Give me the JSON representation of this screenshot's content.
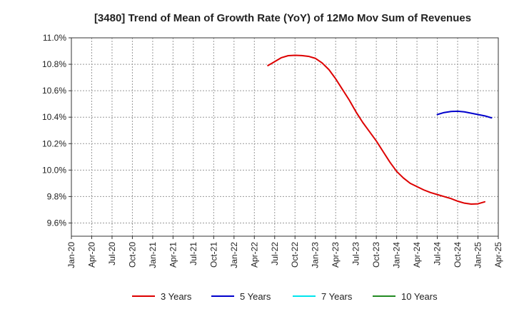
{
  "chart_data": {
    "type": "line",
    "title": "[3480]  Trend of Mean of Growth Rate (YoY) of 12Mo Mov Sum of Revenues",
    "xlabel": "",
    "ylabel": "",
    "y_ticks": [
      9.6,
      9.8,
      10.0,
      10.2,
      10.4,
      10.6,
      10.8,
      11.0
    ],
    "y_tick_labels": [
      "9.6%",
      "9.8%",
      "10.0%",
      "10.2%",
      "10.4%",
      "10.6%",
      "10.8%",
      "11.0%"
    ],
    "ylim": [
      9.5,
      11.0
    ],
    "x_tick_labels": [
      "Jan-20",
      "Apr-20",
      "Jul-20",
      "Oct-20",
      "Jan-21",
      "Apr-21",
      "Jul-21",
      "Oct-21",
      "Jan-22",
      "Apr-22",
      "Jul-22",
      "Oct-22",
      "Jan-23",
      "Apr-23",
      "Jul-23",
      "Oct-23",
      "Jan-24",
      "Apr-24",
      "Jul-24",
      "Oct-24",
      "Jan-25",
      "Apr-25"
    ],
    "grid": true,
    "legend_position": "bottom",
    "series": [
      {
        "name": "3 Years",
        "color": "#dd0000",
        "points": [
          [
            29,
            10.79
          ],
          [
            30,
            10.82
          ],
          [
            31,
            10.85
          ],
          [
            32,
            10.865
          ],
          [
            33,
            10.868
          ],
          [
            34,
            10.866
          ],
          [
            35,
            10.86
          ],
          [
            36,
            10.845
          ],
          [
            37,
            10.81
          ],
          [
            38,
            10.76
          ],
          [
            39,
            10.69
          ],
          [
            40,
            10.61
          ],
          [
            41,
            10.53
          ],
          [
            42,
            10.44
          ],
          [
            43,
            10.36
          ],
          [
            44,
            10.29
          ],
          [
            45,
            10.22
          ],
          [
            46,
            10.14
          ],
          [
            47,
            10.06
          ],
          [
            48,
            9.99
          ],
          [
            49,
            9.94
          ],
          [
            50,
            9.9
          ],
          [
            51,
            9.875
          ],
          [
            52,
            9.85
          ],
          [
            53,
            9.83
          ],
          [
            54,
            9.815
          ],
          [
            55,
            9.8
          ],
          [
            56,
            9.785
          ],
          [
            57,
            9.765
          ],
          [
            58,
            9.75
          ],
          [
            59,
            9.743
          ],
          [
            60,
            9.745
          ],
          [
            61,
            9.76
          ]
        ]
      },
      {
        "name": "5 Years",
        "color": "#0000cc",
        "points": [
          [
            54,
            10.42
          ],
          [
            55,
            10.435
          ],
          [
            56,
            10.443
          ],
          [
            57,
            10.445
          ],
          [
            58,
            10.44
          ],
          [
            59,
            10.43
          ],
          [
            60,
            10.42
          ],
          [
            61,
            10.41
          ],
          [
            62,
            10.395
          ]
        ]
      },
      {
        "name": "7 Years",
        "color": "#00e5ee",
        "points": []
      },
      {
        "name": "10 Years",
        "color": "#228b22",
        "points": []
      }
    ]
  }
}
